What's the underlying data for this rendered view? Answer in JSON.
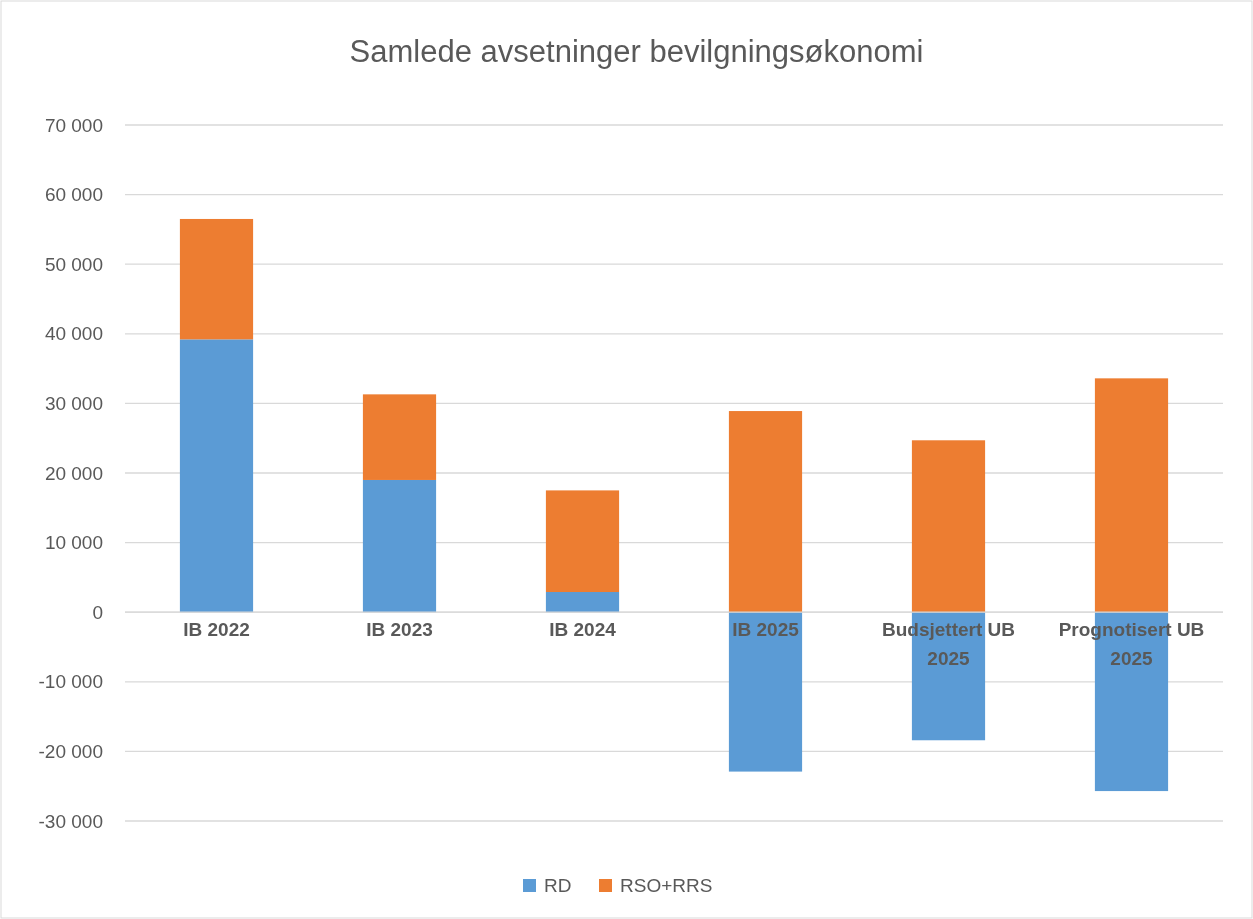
{
  "chart_data": {
    "type": "bar",
    "title": "Samlede avsetninger bevilgningsøkonomi",
    "categories": [
      "IB 2022",
      "IB 2023",
      "IB 2024",
      "IB 2025",
      "Budsjettert UB 2025",
      "Prognotisert UB 2025"
    ],
    "series": [
      {
        "name": "RD",
        "color": "#5b9bd5",
        "values": [
          39200,
          19000,
          2900,
          -22900,
          -18400,
          -25700
        ]
      },
      {
        "name": "RSO+RRS",
        "color": "#ed7d31",
        "values": [
          17300,
          12300,
          14600,
          28900,
          24700,
          33600
        ]
      }
    ],
    "stacked": true,
    "ylim": [
      -30000,
      70000
    ],
    "yticks": [
      {
        "value": -30000,
        "label": "-30 000"
      },
      {
        "value": -20000,
        "label": "-20 000"
      },
      {
        "value": -10000,
        "label": "-10 000"
      },
      0,
      {
        "value": 10000,
        "label": "10 000"
      },
      {
        "value": 20000,
        "label": "20 000"
      },
      {
        "value": 30000,
        "label": "30 000"
      },
      {
        "value": 40000,
        "label": "40 000"
      },
      {
        "value": 50000,
        "label": "50 000"
      },
      {
        "value": 60000,
        "label": "60 000"
      },
      {
        "value": 70000,
        "label": "70 000"
      }
    ],
    "grid": "y",
    "legend": "bottom"
  }
}
